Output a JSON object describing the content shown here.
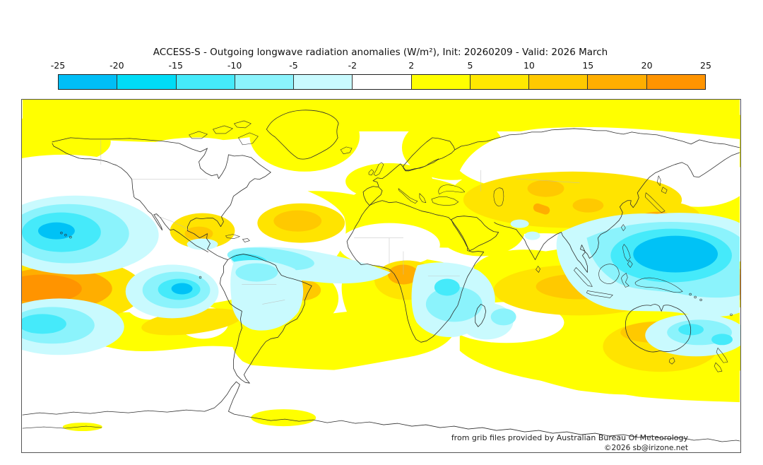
{
  "title": "ACCESS-S - Outgoing longwave radiation anomalies (W/m²), Init: 20260209 - Valid: 2026 March",
  "colorbar": {
    "unit": "W/m²",
    "ticks": [
      "-25",
      "-20",
      "-15",
      "-10",
      "-5",
      "-2",
      "2",
      "5",
      "10",
      "15",
      "20",
      "25"
    ],
    "segments": [
      {
        "label": "-25 to -20",
        "color": "#00BEF6"
      },
      {
        "label": "-20 to -15",
        "color": "#00DCF6"
      },
      {
        "label": "-15 to -10",
        "color": "#45EAFA"
      },
      {
        "label": "-10 to -5",
        "color": "#8BF3FC"
      },
      {
        "label": "-5 to -2",
        "color": "#C9FAFE"
      },
      {
        "label": "-2 to 2",
        "color": "#FFFFFF"
      },
      {
        "label": "2 to 5",
        "color": "#FFFF00"
      },
      {
        "label": "5 to 10",
        "color": "#FFE800"
      },
      {
        "label": "10 to 15",
        "color": "#FFC900"
      },
      {
        "label": "15 to 20",
        "color": "#FFAE00"
      },
      {
        "label": "20 to 25",
        "color": "#FF9400"
      }
    ]
  },
  "map": {
    "credit": "from grib files provided by Australian Bureau Of Meteorology",
    "copyright": "©2026 sb@irizone.net",
    "palette": {
      "yellow": "#FFFF00",
      "gold_light": "#FFE400",
      "gold": "#FFC900",
      "orange": "#FFAE00",
      "orange_deep": "#FF9400",
      "cyan_pale": "#C9FAFE",
      "cyan_light": "#8BF3FC",
      "cyan_mid": "#45EAFA",
      "cyan_deep": "#00C2F6",
      "neutral": "#FFFFFF",
      "coastline": "#2E2E2E",
      "country_border": "#BDBDBD"
    }
  }
}
